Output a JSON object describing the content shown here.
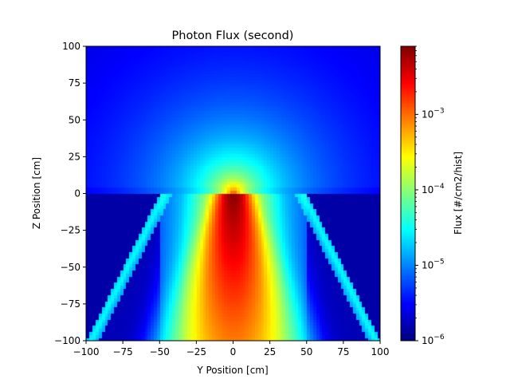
{
  "chart_data": {
    "type": "heatmap",
    "title": "Photon Flux (second)",
    "xlabel": "Y Position [cm]",
    "ylabel": "Z Position [cm]",
    "xlim": [
      -100,
      100
    ],
    "ylim": [
      -100,
      100
    ],
    "x_ticks": [
      "−100",
      "−75",
      "−50",
      "−25",
      "0",
      "25",
      "50",
      "75",
      "100"
    ],
    "y_ticks": [
      "−100",
      "−75",
      "−50",
      "−25",
      "0",
      "25",
      "50",
      "75",
      "100"
    ],
    "colormap": "jet",
    "colorbar": {
      "label": "Flux [#/cm2/hist]",
      "scale": "log",
      "range": [
        1e-06,
        0.008
      ],
      "ticks": [
        {
          "base": "10",
          "exp": "−6",
          "value": 1e-06
        },
        {
          "base": "10",
          "exp": "−5",
          "value": 1e-05
        },
        {
          "base": "10",
          "exp": "−4",
          "value": 0.0001
        },
        {
          "base": "10",
          "exp": "−3",
          "value": 0.001
        }
      ]
    },
    "features": {
      "source_point": {
        "y": 0,
        "z": 0
      },
      "slab_surface_z": 0,
      "slab_top_edge_y": [
        -50,
        50
      ],
      "peak_flux": 0.008,
      "background_flux": 1.5e-06
    }
  },
  "colors": {
    "jet_stops": [
      "#000080",
      "#0000ff",
      "#00ffff",
      "#ffff00",
      "#ff0000",
      "#800000"
    ]
  }
}
